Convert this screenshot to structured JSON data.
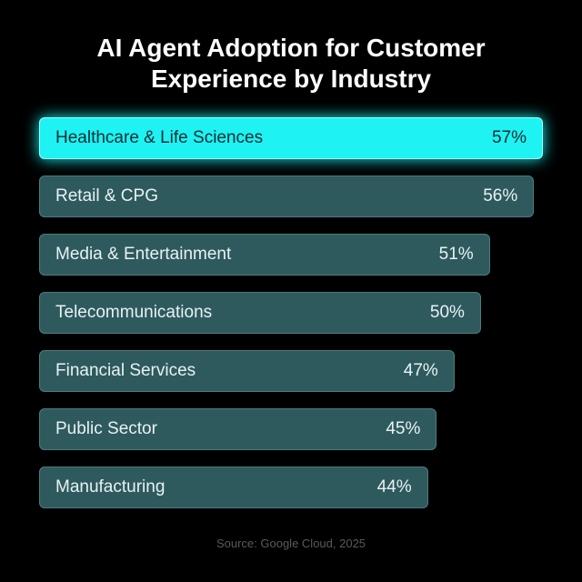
{
  "chart_data": {
    "type": "bar",
    "orientation": "horizontal",
    "title": "AI Agent Adoption for Customer Experience by Industry",
    "categories": [
      "Healthcare & Life Sciences",
      "Retail & CPG",
      "Media & Entertainment",
      "Telecommunications",
      "Financial Services",
      "Public Sector",
      "Manufacturing"
    ],
    "values": [
      57,
      56,
      51,
      50,
      47,
      45,
      44
    ],
    "value_labels": [
      "57%",
      "56%",
      "51%",
      "50%",
      "47%",
      "45%",
      "44%"
    ],
    "colors": [
      "#1ef2f2",
      "#2e5a5e",
      "#2e5a5e",
      "#2e5a5e",
      "#2e5a5e",
      "#2e5a5e",
      "#2e5a5e"
    ],
    "source": "Source: Google Cloud, 2025"
  }
}
